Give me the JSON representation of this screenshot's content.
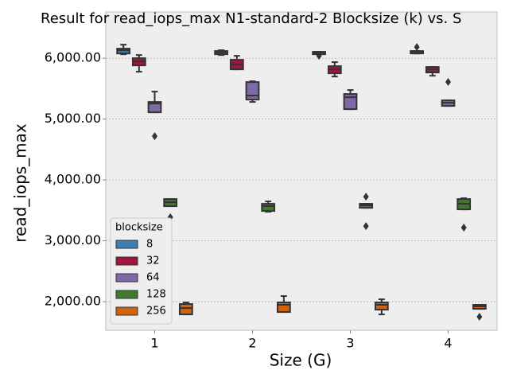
{
  "chart_data": {
    "type": "box",
    "title": "Result for read_iops_max N1-standard-2 Blocksize (k) vs. S",
    "x_label": "Size (G)",
    "y_label": "read_iops_max",
    "categories": [
      "1",
      "2",
      "3",
      "4"
    ],
    "ylim": [
      1530,
      6760
    ],
    "yticks": [
      {
        "value": 2000,
        "label": "2,000.00"
      },
      {
        "value": 3000,
        "label": "3,000.00"
      },
      {
        "value": 4000,
        "label": "4,000.00"
      },
      {
        "value": 5000,
        "label": "5,000.00"
      },
      {
        "value": 6000,
        "label": "6,000.00"
      }
    ],
    "grid": true,
    "legend_title": "blocksize",
    "legend_position": "lower left",
    "series": [
      {
        "name": "8",
        "color": "#3c7fb1",
        "boxes": [
          {
            "whislo": 6065,
            "q1": 6078,
            "med": 6131,
            "q3": 6157,
            "whishi": 6222,
            "fliers": []
          },
          {
            "whislo": 6052,
            "q1": 6065,
            "med": 6092,
            "q3": 6118,
            "whishi": 6131,
            "fliers": []
          },
          {
            "whislo": 6065,
            "q1": 6065,
            "med": 6092,
            "q3": 6105,
            "whishi": 6105,
            "fliers": [
              6040
            ]
          },
          {
            "whislo": 6078,
            "q1": 6078,
            "med": 6105,
            "q3": 6118,
            "whishi": 6118,
            "fliers": [
              6183
            ]
          }
        ]
      },
      {
        "name": "32",
        "color": "#a3173e",
        "boxes": [
          {
            "whislo": 5778,
            "q1": 5882,
            "med": 5948,
            "q3": 6000,
            "whishi": 6052,
            "fliers": []
          },
          {
            "whislo": 5817,
            "q1": 5817,
            "med": 5895,
            "q3": 5974,
            "whishi": 6039,
            "fliers": []
          },
          {
            "whislo": 5699,
            "q1": 5752,
            "med": 5817,
            "q3": 5869,
            "whishi": 5935,
            "fliers": []
          },
          {
            "whislo": 5712,
            "q1": 5765,
            "med": 5817,
            "q3": 5856,
            "whishi": 5856,
            "fliers": []
          }
        ]
      },
      {
        "name": "64",
        "color": "#7f6aa8",
        "boxes": [
          {
            "whislo": 5111,
            "q1": 5111,
            "med": 5255,
            "q3": 5281,
            "whishi": 5451,
            "fliers": [
              4719
            ]
          },
          {
            "whislo": 5281,
            "q1": 5320,
            "med": 5386,
            "q3": 5608,
            "whishi": 5621,
            "fliers": []
          },
          {
            "whislo": 5163,
            "q1": 5163,
            "med": 5359,
            "q3": 5412,
            "whishi": 5477,
            "fliers": []
          },
          {
            "whislo": 5216,
            "q1": 5216,
            "med": 5268,
            "q3": 5307,
            "whishi": 5307,
            "fliers": [
              5610
            ]
          }
        ]
      },
      {
        "name": "128",
        "color": "#3e7a2b",
        "boxes": [
          {
            "whislo": 3569,
            "q1": 3569,
            "med": 3634,
            "q3": 3686,
            "whishi": 3686,
            "fliers": [
              3386
            ]
          },
          {
            "whislo": 3477,
            "q1": 3490,
            "med": 3569,
            "q3": 3608,
            "whishi": 3647,
            "fliers": []
          },
          {
            "whislo": 3542,
            "q1": 3542,
            "med": 3582,
            "q3": 3608,
            "whishi": 3608,
            "fliers": [
              3725,
              3242
            ]
          },
          {
            "whislo": 3516,
            "q1": 3516,
            "med": 3608,
            "q3": 3686,
            "whishi": 3699,
            "fliers": [
              3216
            ]
          }
        ]
      },
      {
        "name": "256",
        "color": "#cf6313",
        "boxes": [
          {
            "whislo": 1791,
            "q1": 1791,
            "med": 1895,
            "q3": 1961,
            "whishi": 1987,
            "fliers": []
          },
          {
            "whislo": 1830,
            "q1": 1830,
            "med": 1948,
            "q3": 1987,
            "whishi": 2092,
            "fliers": []
          },
          {
            "whislo": 1791,
            "q1": 1869,
            "med": 1948,
            "q3": 1987,
            "whishi": 2039,
            "fliers": []
          },
          {
            "whislo": 1882,
            "q1": 1882,
            "med": 1922,
            "q3": 1948,
            "whishi": 1948,
            "fliers": [
              1752
            ]
          }
        ]
      }
    ]
  }
}
